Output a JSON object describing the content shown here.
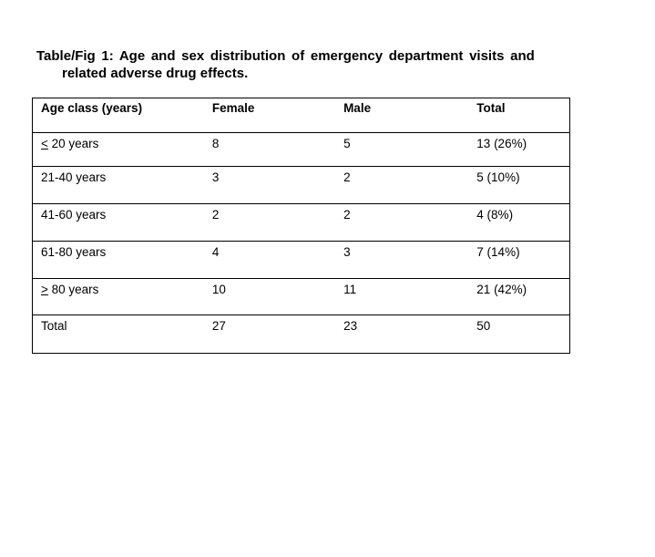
{
  "colors": {
    "background": "#ffffff",
    "text": "#000000",
    "table_border": "#000000"
  },
  "title": {
    "line1": "Table/Fig 1: Age and sex distribution of emergency department visits and",
    "line2": "related adverse drug effects."
  },
  "table": {
    "columns": [
      "Age class (years)",
      "Female",
      "Male",
      "Total"
    ],
    "rows": [
      {
        "age_sym": "<",
        "age_label": " 20 years",
        "female": "8",
        "male": "5",
        "total": "13 (26%)"
      },
      {
        "age_sym": "",
        "age_label": "21-40 years",
        "female": "3",
        "male": "2",
        "total": "5 (10%)"
      },
      {
        "age_sym": "",
        "age_label": "41-60 years",
        "female": "2",
        "male": "2",
        "total": "4 (8%)"
      },
      {
        "age_sym": "",
        "age_label": "61-80 years",
        "female": "4",
        "male": "3",
        "total": "7 (14%)"
      },
      {
        "age_sym": ">",
        "age_label": " 80 years",
        "female": "10",
        "male": "11",
        "total": "21 (42%)"
      },
      {
        "age_sym": "",
        "age_label": "Total",
        "female": "27",
        "male": "23",
        "total": "50"
      }
    ]
  }
}
